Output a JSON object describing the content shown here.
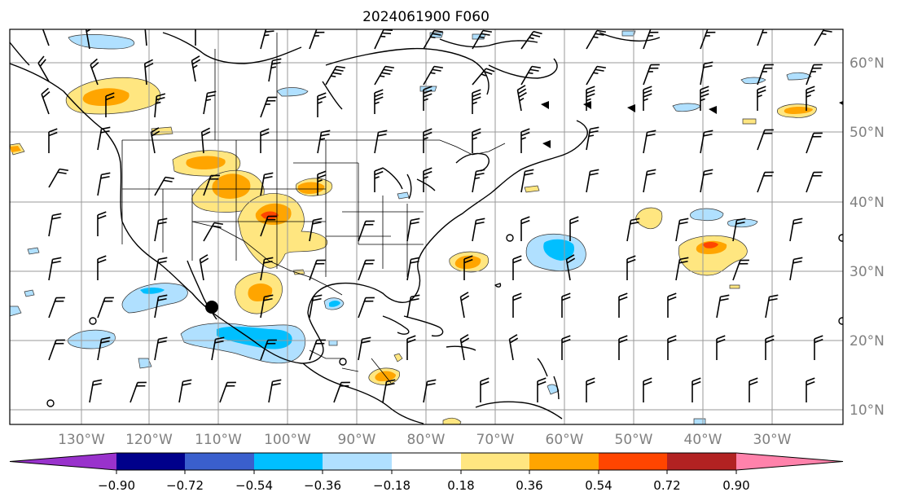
{
  "title": "2024061900 F060",
  "lon_ticks": [
    "130°W",
    "120°W",
    "110°W",
    "100°W",
    "90°W",
    "80°W",
    "70°W",
    "60°W",
    "50°W",
    "40°W",
    "30°W"
  ],
  "lat_ticks": [
    "60°N",
    "50°N",
    "40°N",
    "30°N",
    "20°N",
    "10°N"
  ],
  "colorbar": {
    "labels": [
      "−0.90",
      "−0.72",
      "−0.54",
      "−0.36",
      "−0.18",
      "0.18",
      "0.36",
      "0.54",
      "0.72",
      "0.90"
    ],
    "colors": [
      "#9932cc",
      "#00008b",
      "#3a5fcd",
      "#00bfff",
      "#b0e0ff",
      "#ffffff",
      "#ffe680",
      "#ffa500",
      "#ff4500",
      "#b22222",
      "#ff82ab"
    ],
    "extend": "both"
  }
}
